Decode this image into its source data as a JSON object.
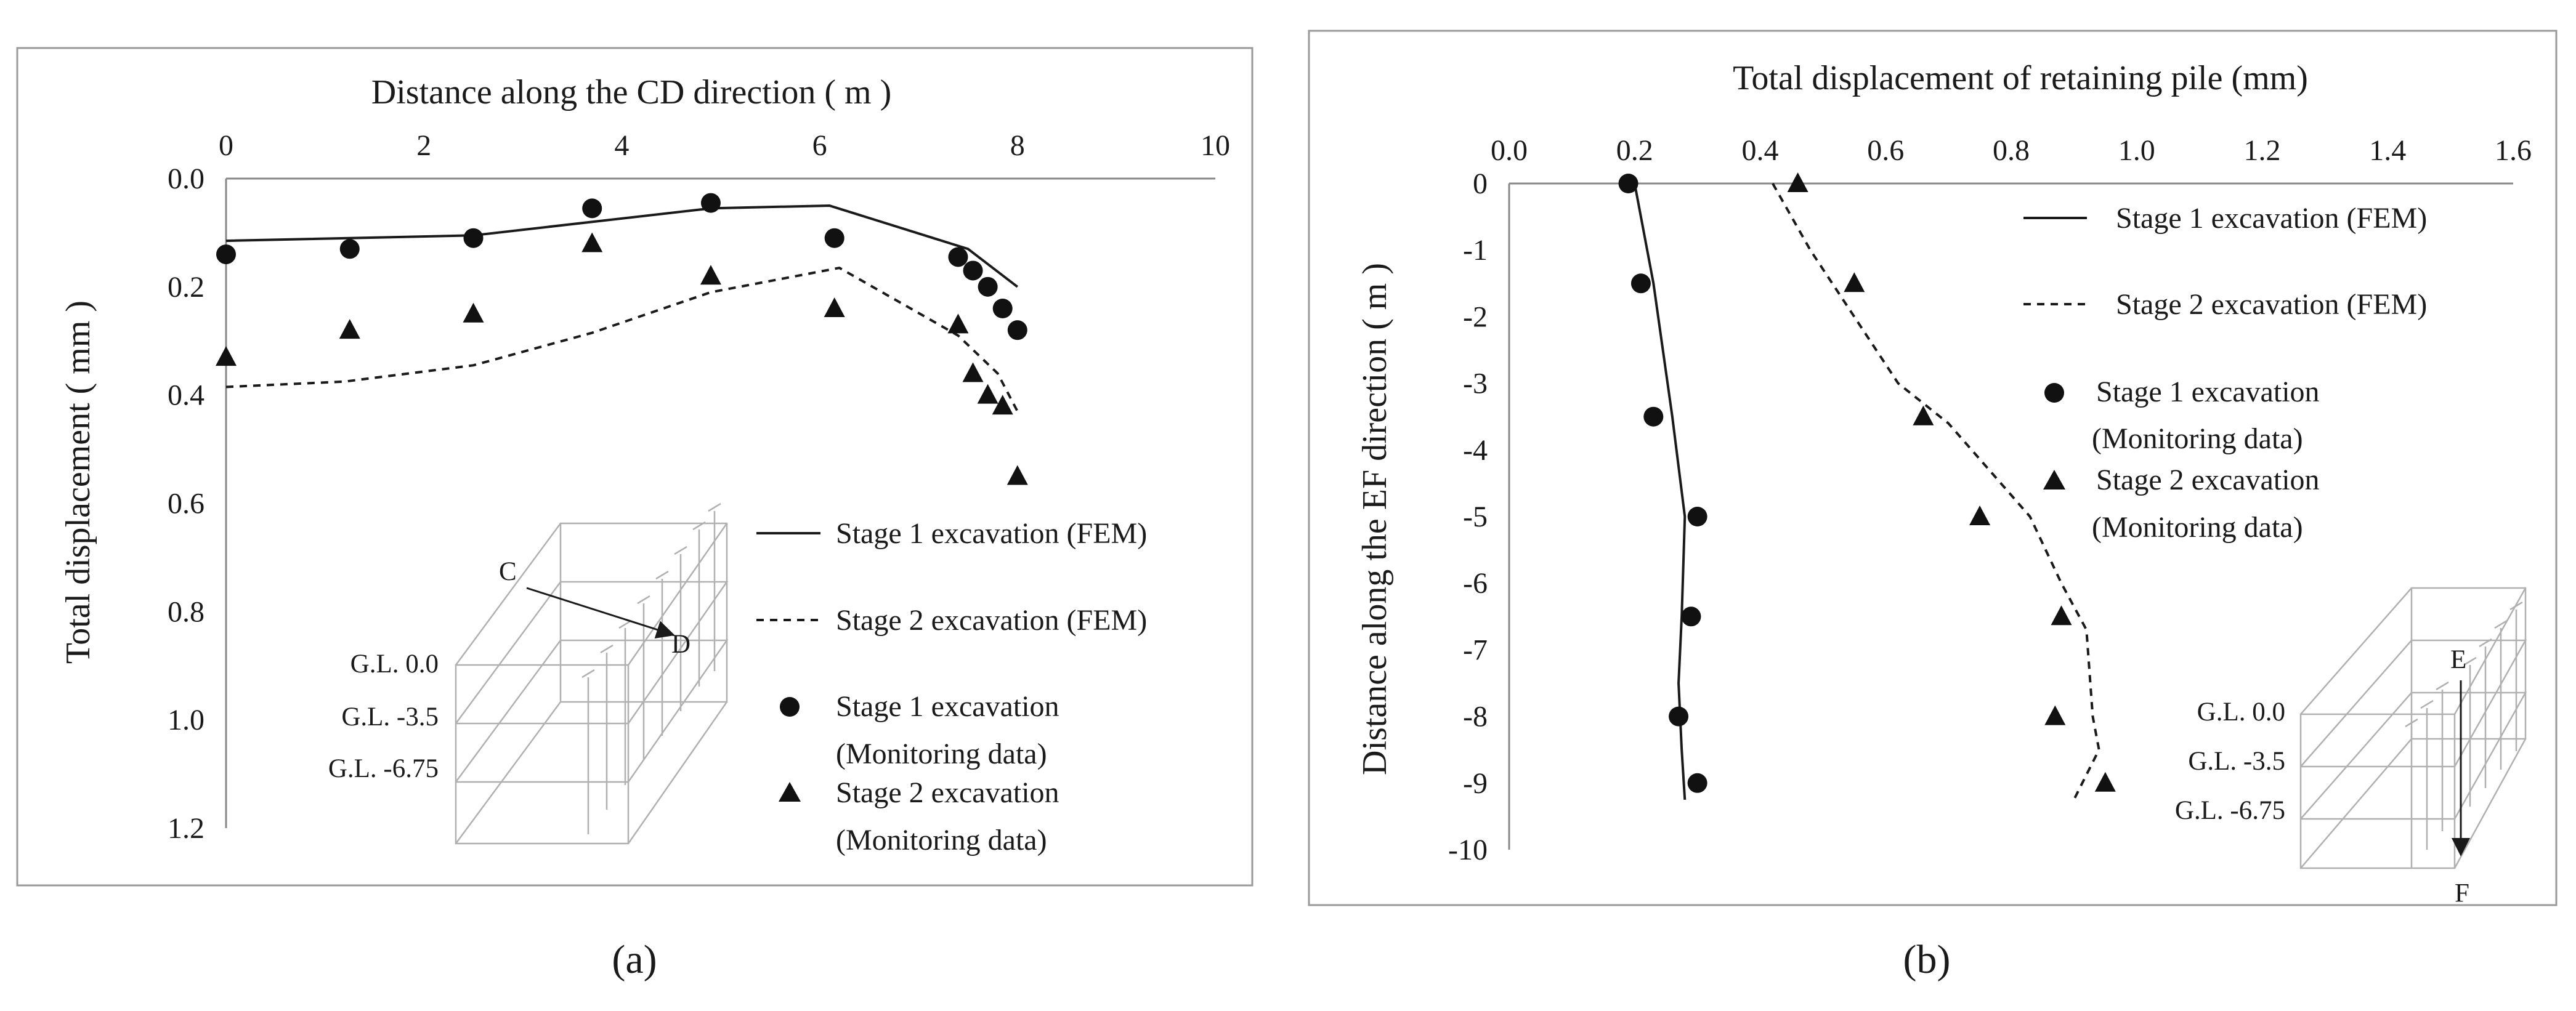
{
  "chart_data": [
    {
      "panel": "a",
      "type": "line",
      "caption": "(a)",
      "xlabel": "Distance along the CD direction ( m )",
      "ylabel": "Total displacement ( mm )",
      "xlim": [
        0,
        10
      ],
      "ylim": [
        0,
        1.2
      ],
      "y_inverted": true,
      "x_axis_position": "top",
      "xticks": [
        "0",
        "2",
        "4",
        "6",
        "8",
        "10"
      ],
      "yticks": [
        "0.0",
        "0.2",
        "0.4",
        "0.6",
        "0.8",
        "1.0",
        "1.2"
      ],
      "series": [
        {
          "name": "Stage 1 excavation (FEM)",
          "style": "solid",
          "x": [
            0,
            2.5,
            4.9,
            6.1,
            7.5,
            8.0
          ],
          "y": [
            0.115,
            0.105,
            0.055,
            0.05,
            0.13,
            0.2
          ]
        },
        {
          "name": "Stage 2 excavation (FEM)",
          "style": "dashed",
          "x": [
            0,
            1.2,
            2.5,
            3.7,
            4.9,
            6.2,
            7.4,
            7.8,
            8.0
          ],
          "y": [
            0.385,
            0.375,
            0.345,
            0.285,
            0.21,
            0.165,
            0.29,
            0.36,
            0.43
          ]
        },
        {
          "name": "Stage 1 excavation",
          "name2": "(Monitoring data)",
          "style": "circle",
          "x": [
            0,
            1.25,
            2.5,
            3.7,
            4.9,
            6.15,
            7.4,
            7.55,
            7.7,
            7.85,
            8.0
          ],
          "y": [
            0.14,
            0.13,
            0.11,
            0.055,
            0.045,
            0.11,
            0.145,
            0.17,
            0.2,
            0.24,
            0.28
          ]
        },
        {
          "name": "Stage 2 excavation",
          "name2": "(Monitoring data)",
          "style": "triangle",
          "x": [
            0,
            1.25,
            2.5,
            3.7,
            4.9,
            6.15,
            7.4,
            7.55,
            7.7,
            7.85,
            8.0
          ],
          "y": [
            0.33,
            0.28,
            0.25,
            0.12,
            0.18,
            0.24,
            0.27,
            0.36,
            0.4,
            0.42,
            0.55
          ]
        }
      ],
      "inset": {
        "labels": [
          "G.L. 0.0",
          "G.L. -3.5",
          "G.L. -6.75"
        ],
        "start_label": "C",
        "end_label": "D"
      }
    },
    {
      "panel": "b",
      "type": "line",
      "caption": "(b)",
      "xlabel": "Total displacement of retaining pile (mm)",
      "ylabel": "Distance along the EF direction ( m )",
      "xlim": [
        0,
        1.6
      ],
      "ylim": [
        -10,
        0
      ],
      "x_axis_position": "top",
      "xticks": [
        "0.0",
        "0.2",
        "0.4",
        "0.6",
        "0.8",
        "1.0",
        "1.2",
        "1.4",
        "1.6"
      ],
      "yticks": [
        "0",
        "-1",
        "-2",
        "-3",
        "-4",
        "-5",
        "-6",
        "-7",
        "-8",
        "-9",
        "-10"
      ],
      "series": [
        {
          "name": "Stage 1 excavation (FEM)",
          "style": "solid",
          "x": [
            0.2,
            0.23,
            0.26,
            0.28,
            0.275,
            0.27,
            0.275,
            0.28
          ],
          "y": [
            0,
            -1.5,
            -3.5,
            -5.0,
            -6.5,
            -7.5,
            -8.5,
            -9.25
          ]
        },
        {
          "name": "Stage 2 excavation (FEM)",
          "style": "dashed",
          "x": [
            0.42,
            0.48,
            0.55,
            0.62,
            0.7,
            0.83,
            0.88,
            0.92,
            0.93,
            0.94,
            0.9
          ],
          "y": [
            0,
            -1.0,
            -2.0,
            -3.0,
            -3.6,
            -5.0,
            -6.0,
            -6.7,
            -8.0,
            -8.5,
            -9.25
          ]
        },
        {
          "name": "Stage 1 excavation",
          "name2": "(Monitoring data)",
          "style": "circle",
          "x": [
            0.19,
            0.21,
            0.23,
            0.3,
            0.29,
            0.27,
            0.3
          ],
          "y": [
            0,
            -1.5,
            -3.5,
            -5.0,
            -6.5,
            -8.0,
            -9.0
          ]
        },
        {
          "name": "Stage 2 excavation",
          "name2": "(Monitoring data)",
          "style": "triangle",
          "x": [
            0.46,
            0.55,
            0.66,
            0.75,
            0.88,
            0.87,
            0.95
          ],
          "y": [
            0,
            -1.5,
            -3.5,
            -5.0,
            -6.5,
            -8.0,
            -9.0
          ]
        }
      ],
      "inset": {
        "labels": [
          "G.L. 0.0",
          "G.L. -3.5",
          "G.L. -6.75"
        ],
        "start_label": "E",
        "end_label": "F"
      }
    }
  ]
}
